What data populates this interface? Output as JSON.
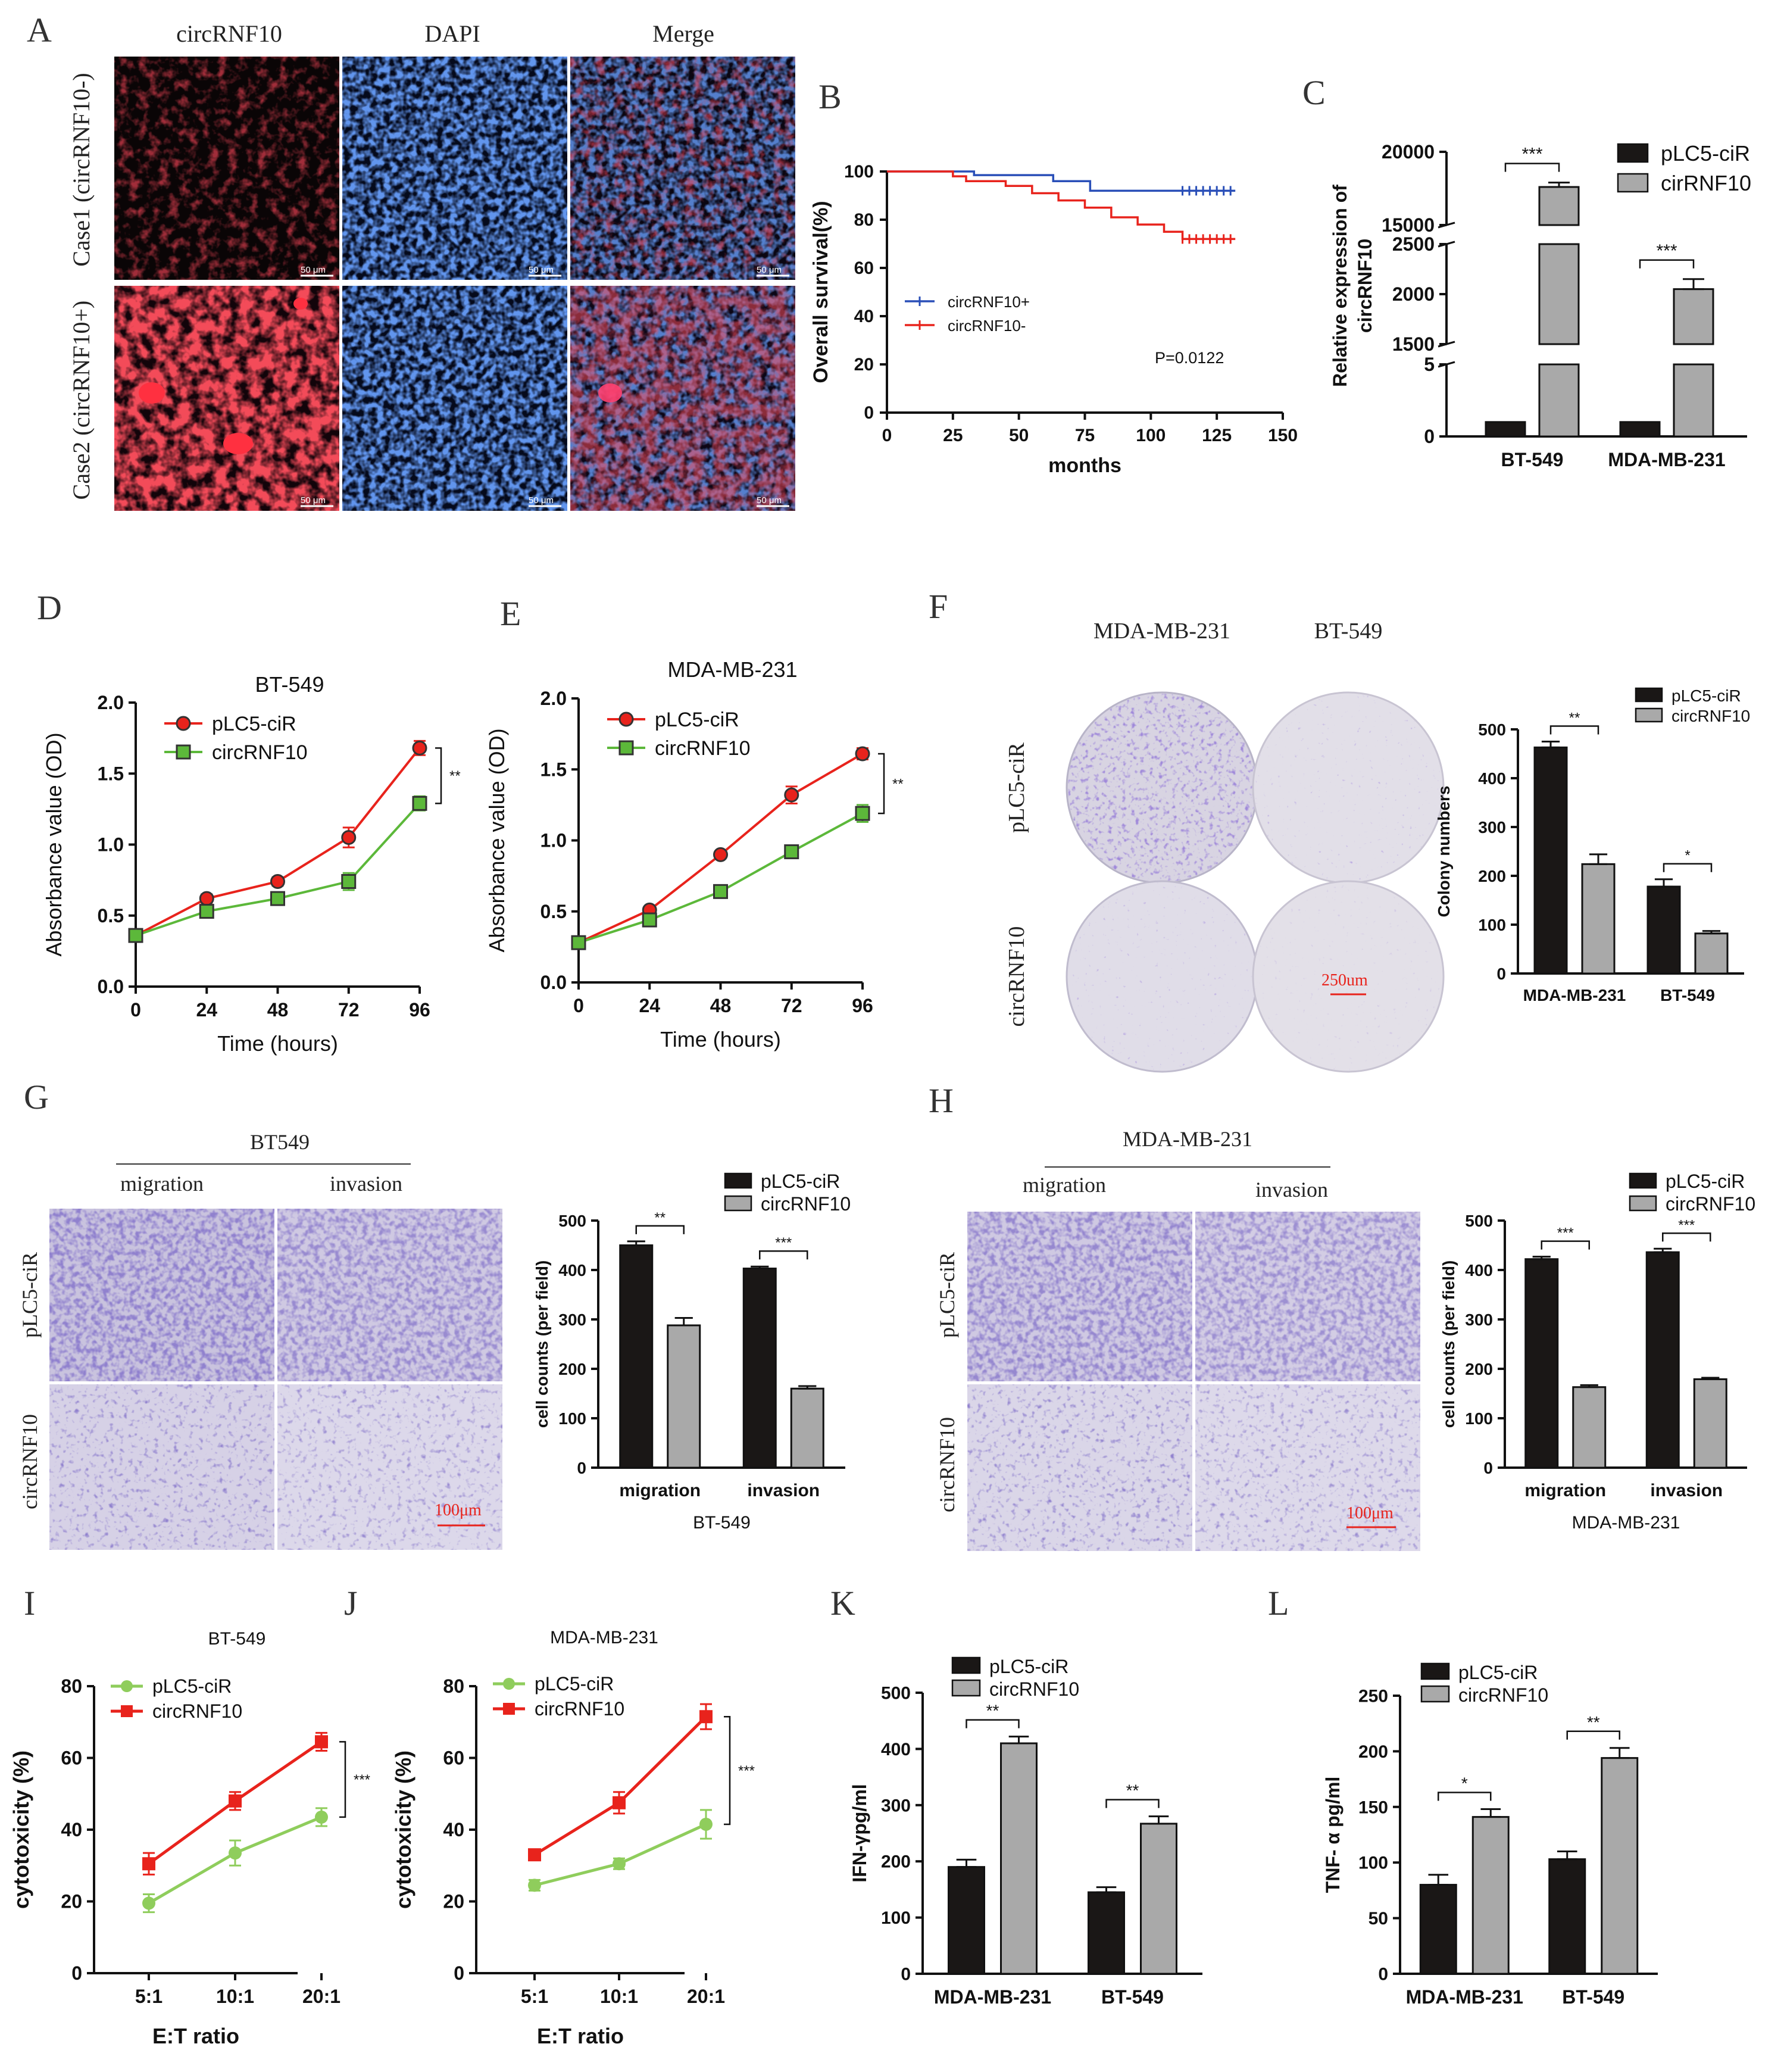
{
  "panel_letters": {
    "A": "A",
    "B": "B",
    "C": "C",
    "D": "D",
    "E": "E",
    "F": "F",
    "G": "G",
    "H": "H",
    "I": "I",
    "J": "J",
    "K": "K",
    "L": "L"
  },
  "panelA": {
    "columns": [
      "circRNF10",
      "DAPI",
      "Merge"
    ],
    "rows": [
      "Case1 (circRNF10-)",
      "Case2 (circRNF10+)"
    ],
    "scale_bar": "50 μm",
    "colors": {
      "red": "#b0111a",
      "blue": "#1f3fa8",
      "black": "#0a0a12"
    }
  },
  "panelF": {
    "columns": [
      "MDA-MB-231",
      "BT-549"
    ],
    "rows": [
      "pLC5-ciR",
      "circRNF10"
    ],
    "scale_bar": "250um"
  },
  "panelG": {
    "cell_line": "BT549",
    "columns": [
      "migration",
      "invasion"
    ],
    "rows": [
      "pLC5-ciR",
      "circRNF10"
    ],
    "scale_bar": "100μm"
  },
  "panelH": {
    "cell_line": "MDA-MB-231",
    "columns": [
      "migration",
      "invasion"
    ],
    "rows": [
      "pLC5-ciR",
      "circRNF10"
    ],
    "scale_bar": "100μm"
  },
  "colors": {
    "dark_bar": "#1a1716",
    "grey_bar": "#a9a9a9",
    "red": "#e8231c",
    "green": "#5cb83a",
    "light_green": "#8fcd5c",
    "blue": "#2a4fb8",
    "stain": "#4a3d9a"
  },
  "chart_data": [
    {
      "id": "B",
      "type": "line",
      "title": "",
      "xlabel": "months",
      "ylabel": "Overall survival(%)",
      "xlim": [
        0,
        150
      ],
      "ylim": [
        0,
        100
      ],
      "xticks": [
        0,
        25,
        50,
        75,
        100,
        125,
        150
      ],
      "yticks": [
        0,
        20,
        40,
        60,
        80,
        100
      ],
      "annotation": "P=0.0122",
      "series": [
        {
          "name": "circRNF10+",
          "color": "#2a4fb8",
          "x": [
            0,
            33,
            33,
            63,
            63,
            77,
            77,
            132
          ],
          "y": [
            100,
            100,
            98.5,
            98.5,
            96,
            96,
            92,
            92
          ]
        },
        {
          "name": "circRNF10-",
          "color": "#e8231c",
          "x": [
            0,
            25,
            25,
            30,
            30,
            45,
            45,
            55,
            55,
            65,
            65,
            75,
            75,
            85,
            85,
            95,
            95,
            105,
            105,
            112,
            112,
            132
          ],
          "y": [
            100,
            100,
            98,
            98,
            96,
            96,
            94,
            94,
            91,
            91,
            88,
            88,
            85,
            85,
            81,
            81,
            78,
            78,
            75,
            75,
            72,
            72
          ]
        }
      ]
    },
    {
      "id": "C",
      "type": "bar",
      "title": "",
      "xlabel": "",
      "ylabel": "Relative expression of circRNF10",
      "categories": [
        "BT-549",
        "MDA-MB-231"
      ],
      "axis_segments": [
        [
          0,
          5
        ],
        [
          1500,
          2500
        ],
        [
          15000,
          20000
        ]
      ],
      "yticks": [
        "0",
        "5",
        "1500",
        "2000",
        "2500",
        "15000",
        "20000"
      ],
      "series": [
        {
          "name": "pLC5-ciR",
          "values": [
            1,
            1
          ],
          "errors": [
            0.08,
            0.06
          ]
        },
        {
          "name": "cirRNF10",
          "values": [
            17600,
            2050
          ],
          "errors": [
            300,
            100
          ]
        }
      ],
      "significance": [
        "***",
        "***"
      ]
    },
    {
      "id": "D",
      "type": "line",
      "title": "BT-549",
      "xlabel": "Time (hours)",
      "ylabel": "Absorbance value (OD)",
      "xlim": [
        0,
        96
      ],
      "ylim": [
        0,
        2.0
      ],
      "xticks": [
        0,
        24,
        48,
        72,
        96
      ],
      "yticks": [
        "0.0",
        "0.5",
        "1.0",
        "1.5",
        "2.0"
      ],
      "x": [
        0,
        24,
        48,
        72,
        96
      ],
      "series": [
        {
          "name": "pLC5-ciR",
          "values": [
            0.36,
            0.62,
            0.74,
            1.05,
            1.68
          ],
          "errors": [
            0.02,
            0.03,
            0.03,
            0.07,
            0.05
          ]
        },
        {
          "name": "circRNF10",
          "values": [
            0.36,
            0.53,
            0.62,
            0.74,
            1.29
          ],
          "errors": [
            0.02,
            0.03,
            0.03,
            0.06,
            0.05
          ]
        }
      ],
      "significance": "**"
    },
    {
      "id": "E",
      "type": "line",
      "title": "MDA-MB-231",
      "xlabel": "Time (hours)",
      "ylabel": "Absorbance value (OD)",
      "xlim": [
        0,
        96
      ],
      "ylim": [
        0,
        2.0
      ],
      "xticks": [
        0,
        24,
        48,
        72,
        96
      ],
      "yticks": [
        "0.0",
        "0.5",
        "1.0",
        "1.5",
        "2.0"
      ],
      "x": [
        0,
        24,
        48,
        72,
        96
      ],
      "series": [
        {
          "name": "pLC5-ciR",
          "values": [
            0.28,
            0.51,
            0.9,
            1.32,
            1.61
          ],
          "errors": [
            0.02,
            0.02,
            0.02,
            0.06,
            0.04
          ]
        },
        {
          "name": "circRNF10",
          "values": [
            0.28,
            0.44,
            0.64,
            0.92,
            1.19
          ],
          "errors": [
            0.02,
            0.02,
            0.02,
            0.03,
            0.06
          ]
        }
      ],
      "significance": "**"
    },
    {
      "id": "F",
      "type": "bar",
      "title": "",
      "xlabel": "",
      "ylabel": "Colony numbers",
      "ylim": [
        0,
        500
      ],
      "yticks": [
        0,
        100,
        200,
        300,
        400,
        500
      ],
      "categories": [
        "MDA-MB-231",
        "BT-549"
      ],
      "series": [
        {
          "name": "pLC5-ciR",
          "values": [
            463,
            178
          ],
          "errors": [
            12,
            15
          ]
        },
        {
          "name": "circRNF10",
          "values": [
            224,
            82
          ],
          "errors": [
            20,
            5
          ]
        }
      ],
      "significance": [
        "**",
        "*"
      ]
    },
    {
      "id": "G",
      "type": "bar",
      "title": "",
      "xlabel": "BT-549",
      "ylabel": "cell counts (per field)",
      "ylim": [
        0,
        500
      ],
      "yticks": [
        0,
        100,
        200,
        300,
        400,
        500
      ],
      "categories": [
        "migration",
        "invasion"
      ],
      "series": [
        {
          "name": "pLC5-ciR",
          "values": [
            450,
            403
          ],
          "errors": [
            8,
            4
          ]
        },
        {
          "name": "circRNF10",
          "values": [
            288,
            160
          ],
          "errors": [
            15,
            5
          ]
        }
      ],
      "significance": [
        "**",
        "***"
      ]
    },
    {
      "id": "H",
      "type": "bar",
      "title": "",
      "xlabel": "MDA-MB-231",
      "ylabel": "cell counts (per field)",
      "ylim": [
        0,
        500
      ],
      "yticks": [
        0,
        100,
        200,
        300,
        400,
        500
      ],
      "categories": [
        "migration",
        "invasion"
      ],
      "series": [
        {
          "name": "pLC5-ciR",
          "values": [
            422,
            436
          ],
          "errors": [
            5,
            7
          ]
        },
        {
          "name": "circRNF10",
          "values": [
            163,
            179
          ],
          "errors": [
            4,
            3
          ]
        }
      ],
      "significance": [
        "***",
        "***"
      ]
    },
    {
      "id": "I",
      "type": "line",
      "title": "BT-549",
      "xlabel": "E:T ratio",
      "ylabel": "cytotoxicity (%)",
      "ylim": [
        0,
        80
      ],
      "yticks": [
        0,
        20,
        40,
        60,
        80
      ],
      "categories": [
        "5:1",
        "10:1",
        "20:1"
      ],
      "series": [
        {
          "name": "pLC5-ciR",
          "values": [
            19.5,
            33.5,
            43.5
          ],
          "errors": [
            2.5,
            3.5,
            2.5
          ]
        },
        {
          "name": "circRNF10",
          "values": [
            30.5,
            48,
            64.5
          ],
          "errors": [
            3,
            2.5,
            2.5
          ]
        }
      ],
      "significance": "***"
    },
    {
      "id": "J",
      "type": "line",
      "title": "MDA-MB-231",
      "xlabel": "E:T ratio",
      "ylabel": "cytotoxicity (%)",
      "ylim": [
        0,
        80
      ],
      "yticks": [
        0,
        20,
        40,
        60,
        80
      ],
      "categories": [
        "5:1",
        "10:1",
        "20:1"
      ],
      "series": [
        {
          "name": "pLC5-ciR",
          "values": [
            24.5,
            30.5,
            41.5
          ],
          "errors": [
            1.5,
            1.5,
            4
          ]
        },
        {
          "name": "circRNF10",
          "values": [
            33,
            47.5,
            71.5
          ],
          "errors": [
            1,
            3,
            3.5
          ]
        }
      ],
      "significance": "***"
    },
    {
      "id": "K",
      "type": "bar",
      "title": "",
      "xlabel": "",
      "ylabel": "IFN-γpg/ml",
      "ylim": [
        0,
        500
      ],
      "yticks": [
        0,
        100,
        200,
        300,
        400,
        500
      ],
      "categories": [
        "MDA-MB-231",
        "BT-549"
      ],
      "series": [
        {
          "name": "pLC5-ciR",
          "values": [
            190,
            145
          ],
          "errors": [
            13,
            9
          ]
        },
        {
          "name": "circRNF10",
          "values": [
            410,
            267
          ],
          "errors": [
            12,
            13
          ]
        }
      ],
      "significance": [
        "**",
        "**"
      ]
    },
    {
      "id": "L",
      "type": "bar",
      "title": "",
      "xlabel": "",
      "ylabel": "TNF- α pg/ml",
      "ylim": [
        0,
        250
      ],
      "yticks": [
        0,
        50,
        100,
        150,
        200,
        250
      ],
      "categories": [
        "MDA-MB-231",
        "BT-549"
      ],
      "series": [
        {
          "name": "pLC5-ciR",
          "values": [
            80,
            103
          ],
          "errors": [
            9,
            7
          ]
        },
        {
          "name": "circRNF10",
          "values": [
            141,
            194
          ],
          "errors": [
            7,
            9
          ]
        }
      ],
      "significance": [
        "*",
        "**"
      ]
    }
  ]
}
